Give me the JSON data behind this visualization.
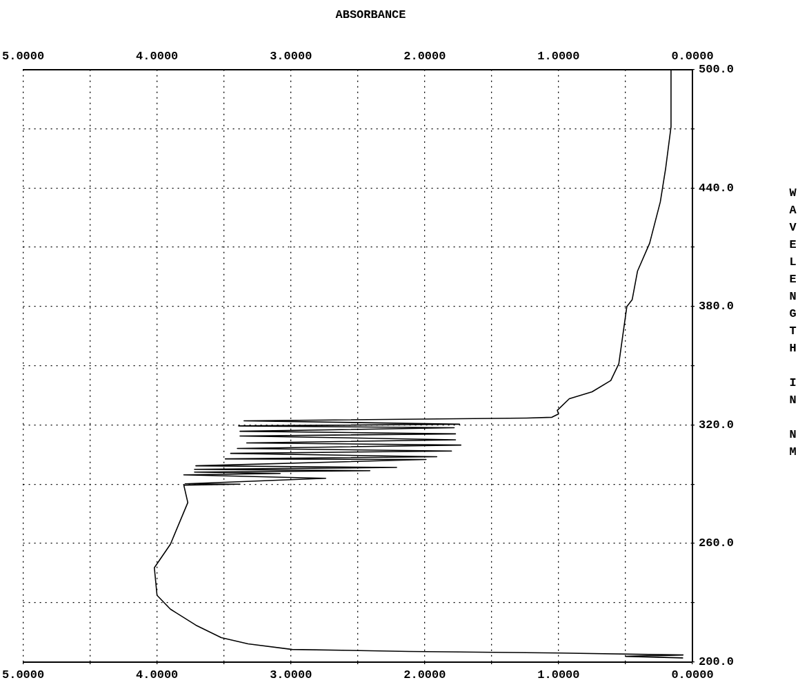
{
  "chart_data": {
    "type": "line",
    "title": "ABSORBANCE",
    "ylabel": "WAVELENGTH IN NM",
    "xlim": [
      5,
      0
    ],
    "xticks": [
      {
        "value": 5,
        "label": "5.0000"
      },
      {
        "value": 4.5,
        "label": null
      },
      {
        "value": 4,
        "label": "4.0000"
      },
      {
        "value": 3.5,
        "label": null
      },
      {
        "value": 3,
        "label": "3.0000"
      },
      {
        "value": 2.5,
        "label": null
      },
      {
        "value": 2,
        "label": "2.0000"
      },
      {
        "value": 1.5,
        "label": null
      },
      {
        "value": 1,
        "label": "1.0000"
      },
      {
        "value": 0.5,
        "label": null
      },
      {
        "value": 0,
        "label": "0.0000"
      }
    ],
    "x2lim": [
      5,
      0
    ],
    "x2ticks": [
      {
        "value": 5,
        "label": "5.0000"
      },
      {
        "value": 4.5,
        "label": null
      },
      {
        "value": 4,
        "label": "4.0000"
      },
      {
        "value": 3.5,
        "label": null
      },
      {
        "value": 3,
        "label": "3.0000"
      },
      {
        "value": 2.5,
        "label": null
      },
      {
        "value": 2,
        "label": "2.0000"
      },
      {
        "value": 1.5,
        "label": null
      },
      {
        "value": 1,
        "label": "1.0000"
      },
      {
        "value": 0.5,
        "label": null
      },
      {
        "value": 0,
        "label": "0.0000"
      }
    ],
    "ylim": [
      200,
      500
    ],
    "yticks": [
      {
        "value": 200,
        "label": "200.0"
      },
      {
        "value": 230,
        "label": null
      },
      {
        "value": 260,
        "label": "260.0"
      },
      {
        "value": 290,
        "label": null
      },
      {
        "value": 320,
        "label": "320.0"
      },
      {
        "value": 350,
        "label": null
      },
      {
        "value": 380,
        "label": "380.0"
      },
      {
        "value": 410,
        "label": null
      },
      {
        "value": 440,
        "label": "440.0"
      },
      {
        "value": 470,
        "label": null
      },
      {
        "value": 500,
        "label": "500.0"
      }
    ],
    "grid": true,
    "legend": false,
    "marker": "none",
    "line_style": "solid",
    "series": [
      {
        "color": "#000000",
        "x": [
          0.16,
          0.16,
          0.2,
          0.24,
          0.32,
          0.41,
          0.45,
          0.49,
          0.55,
          0.61,
          0.75,
          0.92,
          1.01,
          1.0,
          1.05,
          1.24,
          3.35,
          1.74,
          3.39,
          1.78,
          3.38,
          1.77,
          3.38,
          1.77,
          3.33,
          1.73,
          3.4,
          1.8,
          3.45,
          1.91,
          3.49,
          1.99,
          3.71,
          2.21,
          3.72,
          2.41,
          3.72,
          3.08,
          3.8,
          2.74,
          3.79,
          3.38,
          3.8,
          3.77,
          3.9,
          4.02,
          4.0,
          3.9,
          3.71,
          3.52,
          3.32,
          2.99,
          2.12,
          1.0,
          0.07,
          0.5,
          0.07
        ],
        "values": [
          500,
          471,
          450,
          433,
          412,
          398,
          383.5,
          380,
          351,
          342.5,
          336.8,
          333.3,
          327.4,
          325.6,
          323.9,
          323.5,
          322.1,
          320.4,
          319.5,
          318.6,
          316.8,
          315.5,
          314.4,
          312.5,
          310.9,
          309.8,
          308.1,
          306.8,
          305.6,
          303.9,
          302.8,
          302.5,
          299.3,
          298.5,
          297.5,
          296.8,
          296.1,
          295.4,
          294.7,
          293,
          290.2,
          290,
          289.5,
          280.7,
          259.6,
          247.7,
          233.7,
          226.7,
          218.6,
          212.3,
          209.1,
          206.3,
          205.3,
          204.5,
          203.5,
          202.8,
          202
        ]
      }
    ]
  }
}
